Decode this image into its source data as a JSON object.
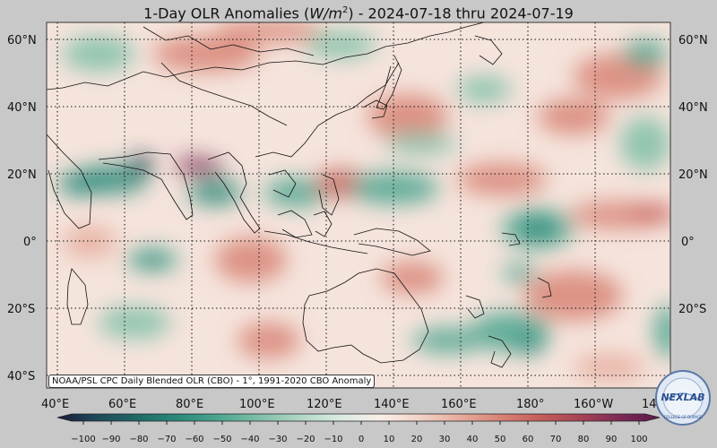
{
  "title": {
    "prefix": "1-Day OLR Anomalies (",
    "unit_base": "W/m",
    "unit_exp": "2",
    "suffix": ") - 2024-07-18 thru 2024-07-19"
  },
  "map": {
    "lat_labels": [
      "60°N",
      "40°N",
      "20°N",
      "0°",
      "20°S",
      "40°S"
    ],
    "lon_labels": [
      "40°E",
      "60°E",
      "80°E",
      "100°E",
      "120°E",
      "140°E",
      "160°E",
      "180°",
      "160°W",
      "14"
    ],
    "caption": "NOAA/PSL CPC Daily Blended OLR (CBO) - 1°, 1991-2020 CBO Anomaly"
  },
  "colorbar": {
    "ticks": [
      "−100",
      "−90",
      "−80",
      "−70",
      "−60",
      "−50",
      "−40",
      "−30",
      "−20",
      "−10",
      "0",
      "10",
      "20",
      "30",
      "40",
      "50",
      "60",
      "70",
      "80",
      "90",
      "100"
    ],
    "colors": [
      "#1a1a3a",
      "#1f4a5a",
      "#1f6a66",
      "#2a8a7a",
      "#4aa58f",
      "#7fbfa8",
      "#afd6c4",
      "#d8ebe2",
      "#f8efe8",
      "#f2d4c8",
      "#e6ad9d",
      "#d88475",
      "#c65f5a",
      "#a84454",
      "#7e2a55",
      "#5a1a48"
    ]
  },
  "logo": {
    "text": "NEXLAB",
    "ring_text": "COLLEGE OF DUPAGE"
  },
  "colors": {
    "positive": "#d88475",
    "negative": "#2a8a7a",
    "neutral": "#f8efe8",
    "land_line": "#111111"
  }
}
